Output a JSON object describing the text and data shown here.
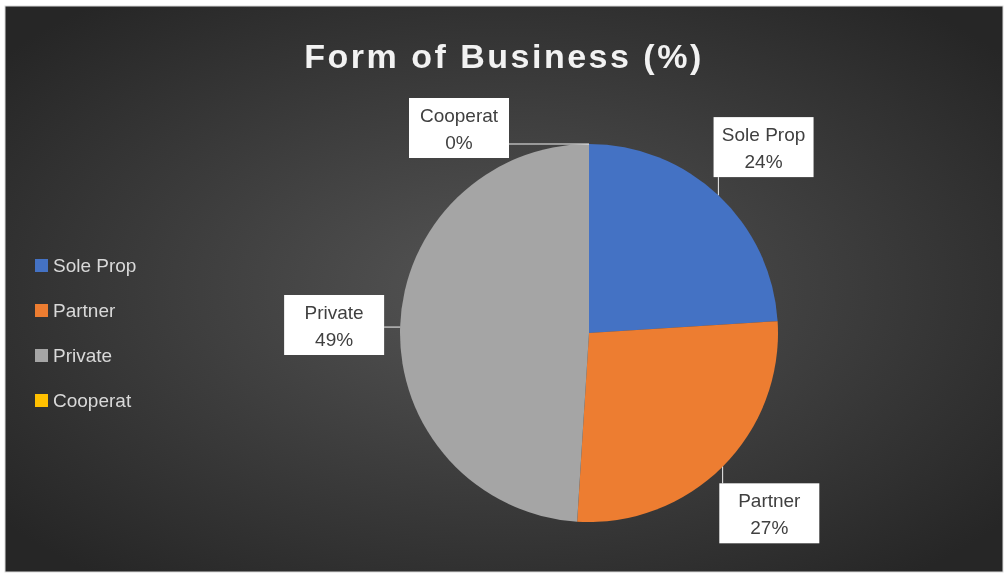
{
  "chart_data": {
    "type": "pie",
    "title": "Form of Business (%)",
    "categories": [
      "Sole Prop",
      "Partner",
      "Private",
      "Cooperat"
    ],
    "values": [
      24,
      27,
      49,
      0
    ],
    "value_labels": [
      "24%",
      "27%",
      "49%",
      "0%"
    ],
    "colors": [
      "#4472c4",
      "#ed7d31",
      "#a5a5a5",
      "#ffc000"
    ],
    "legend": "left"
  }
}
